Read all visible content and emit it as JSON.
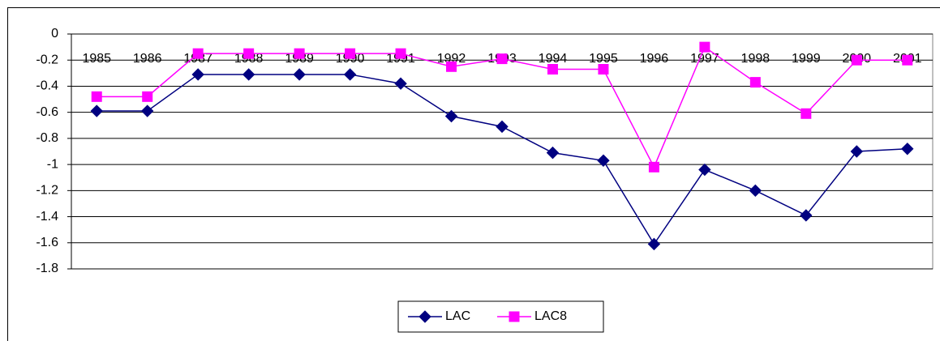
{
  "chart_data": {
    "type": "line",
    "categories": [
      "1985",
      "1986",
      "1987",
      "1988",
      "1989",
      "1990",
      "1991",
      "1992",
      "1993",
      "1994",
      "1995",
      "1996",
      "1997",
      "1998",
      "1999",
      "2000",
      "2001"
    ],
    "series": [
      {
        "name": "LAC",
        "color": "#000080",
        "marker": "diamond",
        "values": [
          -0.59,
          -0.59,
          -0.31,
          -0.31,
          -0.31,
          -0.31,
          -0.38,
          -0.63,
          -0.71,
          -0.91,
          -0.97,
          -1.61,
          -1.04,
          -1.2,
          -1.39,
          -0.9,
          -0.88
        ]
      },
      {
        "name": "LAC8",
        "color": "#ff00ff",
        "marker": "square",
        "values": [
          -0.48,
          -0.48,
          -0.15,
          -0.15,
          -0.15,
          -0.15,
          -0.15,
          -0.25,
          -0.19,
          -0.27,
          -0.27,
          -1.02,
          -0.1,
          -0.37,
          -0.61,
          -0.2,
          -0.2
        ]
      }
    ],
    "ylim": [
      -1.8,
      0
    ],
    "yticks": [
      0,
      -0.2,
      -0.4,
      -0.6,
      -0.8,
      -1,
      -1.2,
      -1.4,
      -1.6,
      -1.8
    ],
    "grid": true,
    "legend": "bottom"
  }
}
